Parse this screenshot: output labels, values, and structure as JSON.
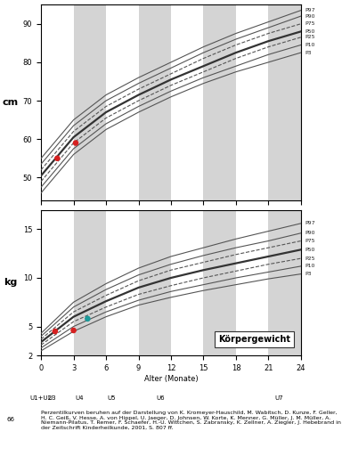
{
  "chart_data": [
    {
      "type": "line",
      "ylabel": "cm",
      "x": [
        0,
        3,
        6,
        9,
        12,
        15,
        18,
        21,
        24
      ],
      "xlim": [
        0,
        24
      ],
      "xticks": [
        0,
        3,
        6,
        9,
        12,
        15,
        18,
        21,
        24
      ],
      "ylim": [
        44,
        95
      ],
      "yticks": [
        50,
        60,
        70,
        80,
        90
      ],
      "tick_labels": "y",
      "series": [
        {
          "name": "P97",
          "color": "#555555",
          "line_style": "solid",
          "values": [
            55,
            65,
            71.5,
            76,
            80,
            84,
            87.5,
            90.5,
            93.5
          ]
        },
        {
          "name": "P90",
          "color": "#555555",
          "line_style": "solid",
          "values": [
            53.5,
            63.5,
            70,
            74.5,
            78.5,
            82.5,
            86,
            89,
            92
          ]
        },
        {
          "name": "P75",
          "color": "#555555",
          "line_style": "dashed",
          "values": [
            52,
            62,
            68.5,
            73,
            77,
            81,
            84.5,
            87.5,
            90
          ]
        },
        {
          "name": "P50",
          "color": "#333333",
          "line_style": "solid",
          "values": [
            50.5,
            60.5,
            67,
            71.5,
            75.5,
            79,
            82.5,
            85.5,
            88
          ]
        },
        {
          "name": "P25",
          "color": "#555555",
          "line_style": "dashed",
          "values": [
            49,
            59,
            65.5,
            70,
            74,
            77.5,
            81,
            84,
            86.5
          ]
        },
        {
          "name": "P10",
          "color": "#555555",
          "line_style": "solid",
          "values": [
            47.5,
            57.5,
            64,
            68.5,
            72.5,
            76,
            79,
            82,
            84.5
          ]
        },
        {
          "name": "P3",
          "color": "#555555",
          "line_style": "solid",
          "values": [
            46,
            56,
            62.5,
            67,
            71,
            74.5,
            77.5,
            80,
            82.5
          ]
        },
        {
          "type": "scatter",
          "marker": "o",
          "x": [
            1.5,
            3.2
          ],
          "values": [
            55,
            59
          ],
          "colors": [
            "#d62020",
            "#d62020"
          ]
        }
      ]
    },
    {
      "type": "line",
      "title": "Körpergewicht",
      "ylabel": "kg",
      "xlabel": "Alter (Monate)",
      "x": [
        0,
        3,
        6,
        9,
        12,
        15,
        18,
        21,
        24
      ],
      "xlim": [
        0,
        24
      ],
      "xticks": [
        0,
        3,
        6,
        9,
        12,
        15,
        18,
        21,
        24
      ],
      "ylim": [
        2,
        17
      ],
      "yticks": [
        2,
        5,
        10,
        15
      ],
      "series": [
        {
          "name": "P97",
          "color": "#555555",
          "line_style": "solid",
          "values": [
            4.3,
            7.5,
            9.4,
            11,
            12.2,
            13.1,
            14,
            14.8,
            15.6
          ]
        },
        {
          "name": "P90",
          "color": "#555555",
          "line_style": "solid",
          "values": [
            4,
            7,
            8.8,
            10.3,
            11.4,
            12.3,
            13.1,
            13.8,
            14.6
          ]
        },
        {
          "name": "P75",
          "color": "#555555",
          "line_style": "dashed",
          "values": [
            3.7,
            6.5,
            8.2,
            9.7,
            10.8,
            11.6,
            12.4,
            13.1,
            13.8
          ]
        },
        {
          "name": "P50",
          "color": "#333333",
          "line_style": "solid",
          "values": [
            3.4,
            6,
            7.6,
            9,
            10,
            10.8,
            11.5,
            12.2,
            12.9
          ]
        },
        {
          "name": "P25",
          "color": "#555555",
          "line_style": "dashed",
          "values": [
            3.1,
            5.5,
            7,
            8.3,
            9.2,
            10,
            10.7,
            11.4,
            12
          ]
        },
        {
          "name": "P10",
          "color": "#555555",
          "line_style": "solid",
          "values": [
            2.8,
            5,
            6.5,
            7.7,
            8.6,
            9.3,
            10,
            10.6,
            11.2
          ]
        },
        {
          "name": "P3",
          "color": "#555555",
          "line_style": "solid",
          "values": [
            2.5,
            4.5,
            6,
            7.2,
            8,
            8.7,
            9.3,
            9.9,
            10.4
          ]
        },
        {
          "type": "scatter",
          "marker": "o",
          "x": [
            1.3,
            3.0,
            4.3
          ],
          "values": [
            4.5,
            4.6,
            5.8
          ],
          "colors": [
            "#d62020",
            "#d62020",
            "#1a9a9a"
          ]
        }
      ],
      "u_exams": [
        {
          "label": "U1+U2",
          "x": 0
        },
        {
          "label": "U3",
          "x": 1
        },
        {
          "label": "U4",
          "x": 3.5
        },
        {
          "label": "U5",
          "x": 6.5
        },
        {
          "label": "U6",
          "x": 11
        },
        {
          "label": "U7",
          "x": 22
        }
      ]
    }
  ],
  "footnote": "Perzentilkurven beruhen auf der Darstellung von K. Kromeyer-Hauschild, M. Wabitsch, D. Kunze, F. Geller, H. C. Geiß, V. Hesse, A. von Hippel, U. Jaeger, D. Johnsen, W. Korte, K. Menner, G. Müller, J. M. Müller, A. Niemann-Pilatus, T. Remer, F. Schaefer, H.-U. Wittchen, S. Zabransky, K. Zellner, A. Ziegler, J. Hebebrand in der Zeitschrift Kinderheilkunde, 2001, S. 807 ff.",
  "page_number": "66"
}
